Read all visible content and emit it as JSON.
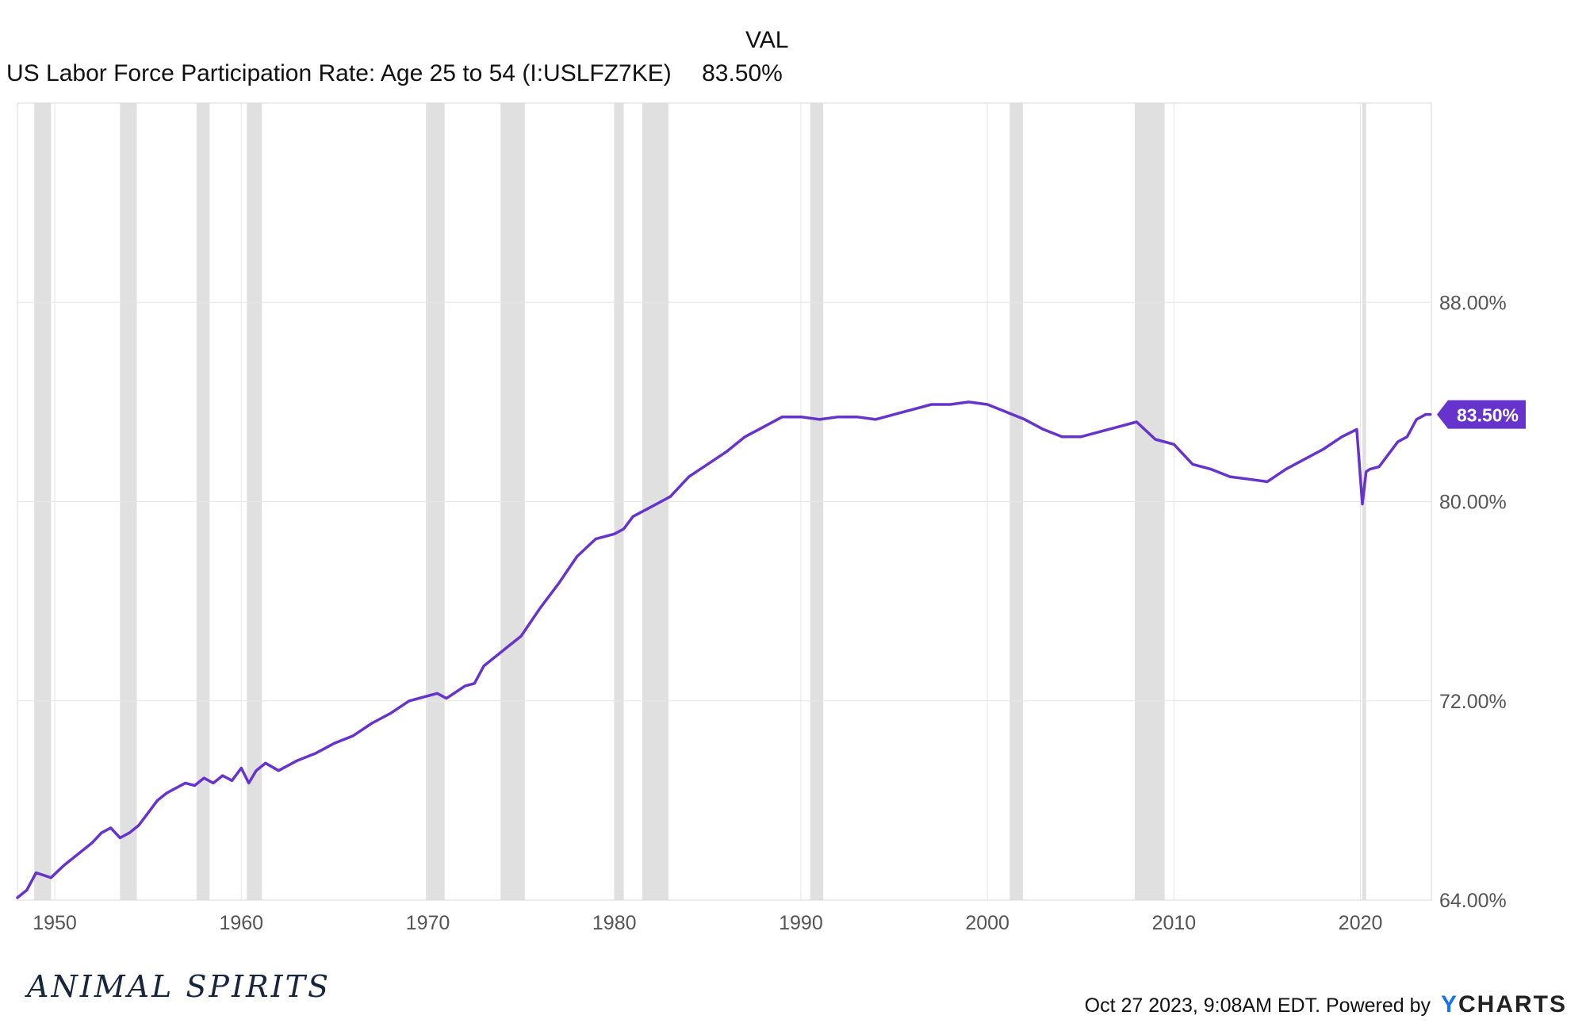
{
  "header": {
    "column_label": "VAL",
    "series_name": "US Labor Force Participation Rate: Age 25 to 54 (I:USLFZ7KE)",
    "series_value": "83.50%"
  },
  "footer": {
    "left_logo_text": "ANIMAL SPIRITS",
    "timestamp": "Oct 27 2023, 9:08AM EDT.",
    "powered_by": "Powered by",
    "brand_y": "Y",
    "brand_rest": "CHARTS"
  },
  "colors": {
    "line": "#6633cc",
    "recession": "#e0e0e0",
    "grid": "#e6e6e6",
    "axis_text": "#555555"
  },
  "chart_data": {
    "type": "line",
    "title": "",
    "xlabel": "",
    "ylabel": "",
    "xlim": [
      1948,
      2023.8
    ],
    "ylim": [
      64,
      96
    ],
    "y_ticks": [
      64,
      72,
      80,
      88
    ],
    "y_tick_labels": [
      "64.00%",
      "72.00%",
      "80.00%",
      "88.00%"
    ],
    "x_ticks": [
      1950,
      1960,
      1970,
      1980,
      1990,
      2000,
      2010,
      2020
    ],
    "x_tick_labels": [
      "1950",
      "1960",
      "1970",
      "1980",
      "1990",
      "2000",
      "2010",
      "2020"
    ],
    "grid": true,
    "last_value_label": "83.50%",
    "recessions": [
      [
        1948.9,
        1949.8
      ],
      [
        1953.5,
        1954.4
      ],
      [
        1957.6,
        1958.3
      ],
      [
        1960.3,
        1961.1
      ],
      [
        1969.9,
        1970.9
      ],
      [
        1973.9,
        1975.2
      ],
      [
        1980.0,
        1980.5
      ],
      [
        1981.5,
        1982.9
      ],
      [
        1990.5,
        1991.2
      ],
      [
        2001.2,
        2001.9
      ],
      [
        2007.9,
        2009.5
      ],
      [
        2020.1,
        2020.3
      ]
    ],
    "series": [
      {
        "name": "US Labor Force Participation Rate: Age 25 to 54 (I:USLFZ7KE)",
        "x": [
          1948.0,
          1948.5,
          1949.0,
          1949.8,
          1950.5,
          1951.0,
          1951.5,
          1952.0,
          1952.5,
          1953.0,
          1953.5,
          1954.0,
          1954.5,
          1955.0,
          1955.5,
          1956.0,
          1956.5,
          1957.0,
          1957.5,
          1958.0,
          1958.5,
          1959.0,
          1959.5,
          1960.0,
          1960.4,
          1960.8,
          1961.3,
          1962.0,
          1963.0,
          1964.0,
          1965.0,
          1966.0,
          1967.0,
          1968.0,
          1969.0,
          1970.0,
          1970.5,
          1971.0,
          1972.0,
          1972.5,
          1973.0,
          1974.0,
          1975.0,
          1976.0,
          1977.0,
          1978.0,
          1979.0,
          1980.0,
          1980.5,
          1981.0,
          1982.0,
          1983.0,
          1984.0,
          1985.0,
          1986.0,
          1987.0,
          1988.0,
          1989.0,
          1990.0,
          1991.0,
          1992.0,
          1993.0,
          1994.0,
          1995.0,
          1996.0,
          1997.0,
          1998.0,
          1999.0,
          2000.0,
          2001.0,
          2002.0,
          2003.0,
          2004.0,
          2005.0,
          2006.0,
          2007.0,
          2008.0,
          2009.0,
          2010.0,
          2011.0,
          2012.0,
          2013.0,
          2014.0,
          2015.0,
          2016.0,
          2017.0,
          2018.0,
          2019.0,
          2019.8,
          2020.1,
          2020.3,
          2020.5,
          2021.0,
          2021.5,
          2022.0,
          2022.5,
          2023.0,
          2023.5,
          2023.75
        ],
        "values": [
          64.1,
          64.4,
          65.1,
          64.9,
          65.4,
          65.7,
          66.0,
          66.3,
          66.7,
          66.9,
          66.5,
          66.7,
          67.0,
          67.5,
          68.0,
          68.3,
          68.5,
          68.7,
          68.6,
          68.9,
          68.7,
          69.0,
          68.8,
          69.3,
          68.7,
          69.2,
          69.5,
          69.2,
          69.6,
          69.9,
          70.3,
          70.6,
          71.1,
          71.5,
          72.0,
          72.2,
          72.3,
          72.1,
          72.6,
          72.7,
          73.4,
          74.0,
          74.6,
          75.7,
          76.7,
          77.8,
          78.5,
          78.7,
          78.9,
          79.4,
          79.8,
          80.2,
          81.0,
          81.5,
          82.0,
          82.6,
          83.0,
          83.4,
          83.4,
          83.3,
          83.4,
          83.4,
          83.3,
          83.5,
          83.7,
          83.9,
          83.9,
          84.0,
          83.9,
          83.6,
          83.3,
          82.9,
          82.6,
          82.6,
          82.8,
          83.0,
          83.2,
          82.5,
          82.3,
          81.5,
          81.3,
          81.0,
          80.9,
          80.8,
          81.3,
          81.7,
          82.1,
          82.6,
          82.9,
          79.9,
          81.2,
          81.3,
          81.4,
          81.9,
          82.4,
          82.6,
          83.3,
          83.5,
          83.5
        ]
      }
    ]
  }
}
